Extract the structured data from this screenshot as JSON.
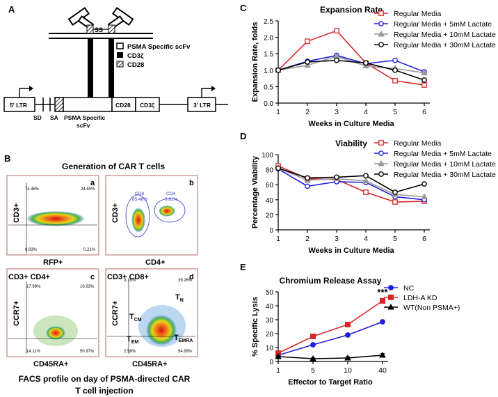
{
  "panels": {
    "A": "A",
    "B": "B",
    "C": "C",
    "D": "D",
    "E": "E"
  },
  "legend_A": {
    "scfv": "PSMA Specific scFv",
    "cd3z": "CD3ζ",
    "cd28": "CD28",
    "ss": "SS"
  },
  "construct": {
    "ltr5": "5' LTR",
    "sd": "SD",
    "sa": "SA",
    "psma_line1": "PSMA Specific",
    "psma_line2": "scFv",
    "cd28": "CD28",
    "cd3z": "CD3ζ",
    "ltr3": "3' LTR"
  },
  "panelB": {
    "title": "Generation of CAR T cells",
    "caption_line1": "FACS profile on day of PSMA-directed CAR",
    "caption_line2": "T cell injection",
    "plots": [
      {
        "letter": "a",
        "header": "",
        "xlabel": "RFP+",
        "ylabel": "CD3+",
        "q_ul": "74.46%",
        "q_ur": "24.50%",
        "q_ll": "0.83%",
        "q_lr": "0.21%"
      },
      {
        "letter": "b",
        "header": "",
        "xlabel": "CD4+",
        "ylabel": "CD3+",
        "g1": "CD8",
        "g1v": "85.48%",
        "g2": "CD4",
        "g2v": "9.81%"
      },
      {
        "letter": "c",
        "header": "CD3+ CD4+",
        "xlabel": "CD45RA+",
        "ylabel": "CCR7+",
        "q_ul": "17.99%",
        "q_ur": "16.93%",
        "q_ll": "14.11%",
        "q_lr": "50.97%"
      },
      {
        "letter": "d",
        "header": "CD3+ CD8+",
        "xlabel": "CD45RA+",
        "ylabel": "CCR7+",
        "q_ul": "3.16%",
        "q_ur": "39.26%",
        "q_ll": "2.58%",
        "q_lr": "54.99%"
      }
    ],
    "subsets": {
      "tcm": "T",
      "tcm_sub": "CM",
      "tn": "T",
      "tn_sub": "N",
      "tem": "T",
      "tem_sub": "EM",
      "temra": "T",
      "temra_sub": "EMRA"
    }
  },
  "colors": {
    "regular": "#d62728",
    "lactate5": "#1f1fe0",
    "lactate10": "#999999",
    "lactate30": "#000000",
    "nc": "#1f1fe0",
    "ldh": "#d62728",
    "wt": "#000000",
    "gate": "#3333cc"
  },
  "chart_data": [
    {
      "type": "line",
      "id": "C",
      "title": "Expansion Rate",
      "xlabel": "Weeks in Culture Media",
      "ylabel": "Expansion Rate, folds",
      "x": [
        1,
        2,
        3,
        4,
        5,
        6
      ],
      "xticks": [
        "1",
        "2",
        "3",
        "4",
        "5",
        "6"
      ],
      "ylim": [
        0,
        2.5
      ],
      "yticks": [
        "0.0",
        "0.5",
        "1.0",
        "1.5",
        "2.0",
        "2.5"
      ],
      "series": [
        {
          "name": "Regular Media",
          "values": [
            1.0,
            1.88,
            2.2,
            1.22,
            0.68,
            0.55
          ]
        },
        {
          "name": "Regular Media + 5mM Lactate",
          "values": [
            1.0,
            1.27,
            1.45,
            1.2,
            1.3,
            0.95
          ]
        },
        {
          "name": "Regular Media + 10mM Lactate",
          "values": [
            1.0,
            1.15,
            1.42,
            1.13,
            1.05,
            0.92
          ]
        },
        {
          "name": "Regular Media + 30mM Lactate",
          "values": [
            1.0,
            1.25,
            1.3,
            1.22,
            1.0,
            0.7
          ]
        }
      ]
    },
    {
      "type": "line",
      "id": "D",
      "title": "Viability",
      "xlabel": "Weeks in Culture Media",
      "ylabel": "Percentage Viability",
      "x": [
        1,
        2,
        3,
        4,
        5,
        6
      ],
      "xticks": [
        "1",
        "2",
        "3",
        "4",
        "5",
        "6"
      ],
      "ylim": [
        0,
        100
      ],
      "yticks": [
        "0",
        "20",
        "40",
        "60",
        "80",
        "100"
      ],
      "series": [
        {
          "name": "Regular Media",
          "values": [
            85,
            68,
            67,
            50,
            37,
            38
          ]
        },
        {
          "name": "Regular Media + 5mM Lactate",
          "values": [
            81,
            58,
            64,
            63,
            44,
            40
          ]
        },
        {
          "name": "Regular Media + 10mM Lactate",
          "values": [
            82,
            66,
            68,
            65,
            47,
            44
          ]
        },
        {
          "name": "Regular Media + 30mM Lactate",
          "values": [
            82,
            69,
            70,
            72,
            50,
            61
          ]
        }
      ]
    },
    {
      "type": "line",
      "id": "E",
      "title": "Chromium Release Assay",
      "xlabel": "Effector to Target Ratio",
      "ylabel": "% Specific Lysis",
      "xticks": [
        "1",
        "5",
        "10",
        "40"
      ],
      "ylim": [
        0,
        50
      ],
      "yticks": [
        "0",
        "10",
        "20",
        "30",
        "40",
        "50"
      ],
      "annotation": "***",
      "series": [
        {
          "name": "NC",
          "values": [
            4.5,
            12,
            19,
            28.5
          ],
          "errors": [
            0.8,
            1.0,
            1.2,
            1.2
          ]
        },
        {
          "name": "LDH-A KD",
          "values": [
            6,
            18,
            26.5,
            43.5
          ],
          "errors": [
            0.8,
            0.8,
            1.5,
            1.8
          ]
        },
        {
          "name": "WT(Non PSMA+)",
          "values": [
            3.5,
            2,
            2.5,
            4.5
          ],
          "errors": [
            0.5,
            0.5,
            0.8,
            1.2
          ]
        }
      ]
    }
  ]
}
